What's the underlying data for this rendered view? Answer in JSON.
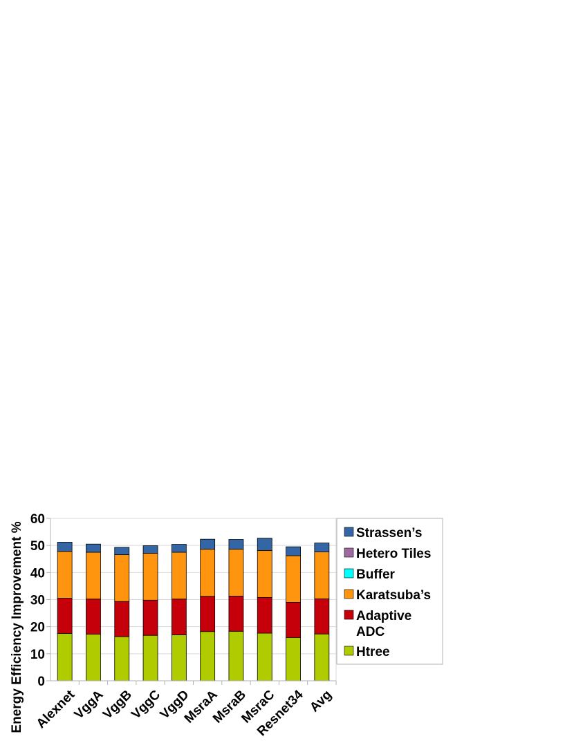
{
  "chart_data": {
    "type": "bar",
    "stacked": true,
    "ylabel": "Energy Efficiency Improvement %",
    "xlabel": "",
    "ylim": [
      0,
      60
    ],
    "yticks": [
      0,
      10,
      20,
      30,
      40,
      50,
      60
    ],
    "grid": "horizontal",
    "legend_position": "right",
    "categories": [
      "Alexnet",
      "VggA",
      "VggB",
      "VggC",
      "VggD",
      "MsraA",
      "MsraB",
      "MsraC",
      "Resnet34",
      "Avg"
    ],
    "series": [
      {
        "name": "Htree",
        "color": "#b0cc00",
        "values": [
          17.5,
          17.2,
          16.3,
          16.8,
          17.0,
          18.2,
          18.3,
          17.6,
          16.0,
          17.3
        ]
      },
      {
        "name": "Adaptive ADC",
        "color": "#c5000b",
        "values": [
          13.0,
          13.0,
          13.0,
          13.0,
          13.2,
          13.0,
          13.0,
          13.2,
          13.0,
          13.0
        ]
      },
      {
        "name": "Karatsuba’s",
        "color": "#ff950e",
        "values": [
          17.3,
          17.3,
          17.3,
          17.3,
          17.3,
          17.4,
          17.3,
          17.3,
          17.2,
          17.3
        ]
      },
      {
        "name": "Buffer",
        "color": "#00ffff",
        "values": [
          0,
          0,
          0,
          0,
          0,
          0,
          0,
          0,
          0,
          0
        ]
      },
      {
        "name": "Hetero Tiles",
        "color": "#9e6ba1",
        "values": [
          0,
          0,
          0,
          0,
          0,
          0,
          0,
          0,
          0,
          0
        ]
      },
      {
        "name": "Strassen’s",
        "color": "#3465a4",
        "values": [
          3.4,
          3.0,
          2.7,
          2.8,
          2.9,
          3.7,
          3.6,
          4.6,
          3.3,
          3.3
        ]
      }
    ],
    "legend": [
      {
        "lines": [
          "Strassen’s"
        ],
        "color": "#3465a4"
      },
      {
        "lines": [
          "Hetero Tiles"
        ],
        "color": "#9e6ba1"
      },
      {
        "lines": [
          "Buffer"
        ],
        "color": "#00ffff"
      },
      {
        "lines": [
          "Karatsuba’s"
        ],
        "color": "#ff950e"
      },
      {
        "lines": [
          "Adaptive",
          "ADC"
        ],
        "color": "#c5000b"
      },
      {
        "lines": [
          "Htree"
        ],
        "color": "#b0cc00"
      }
    ]
  }
}
